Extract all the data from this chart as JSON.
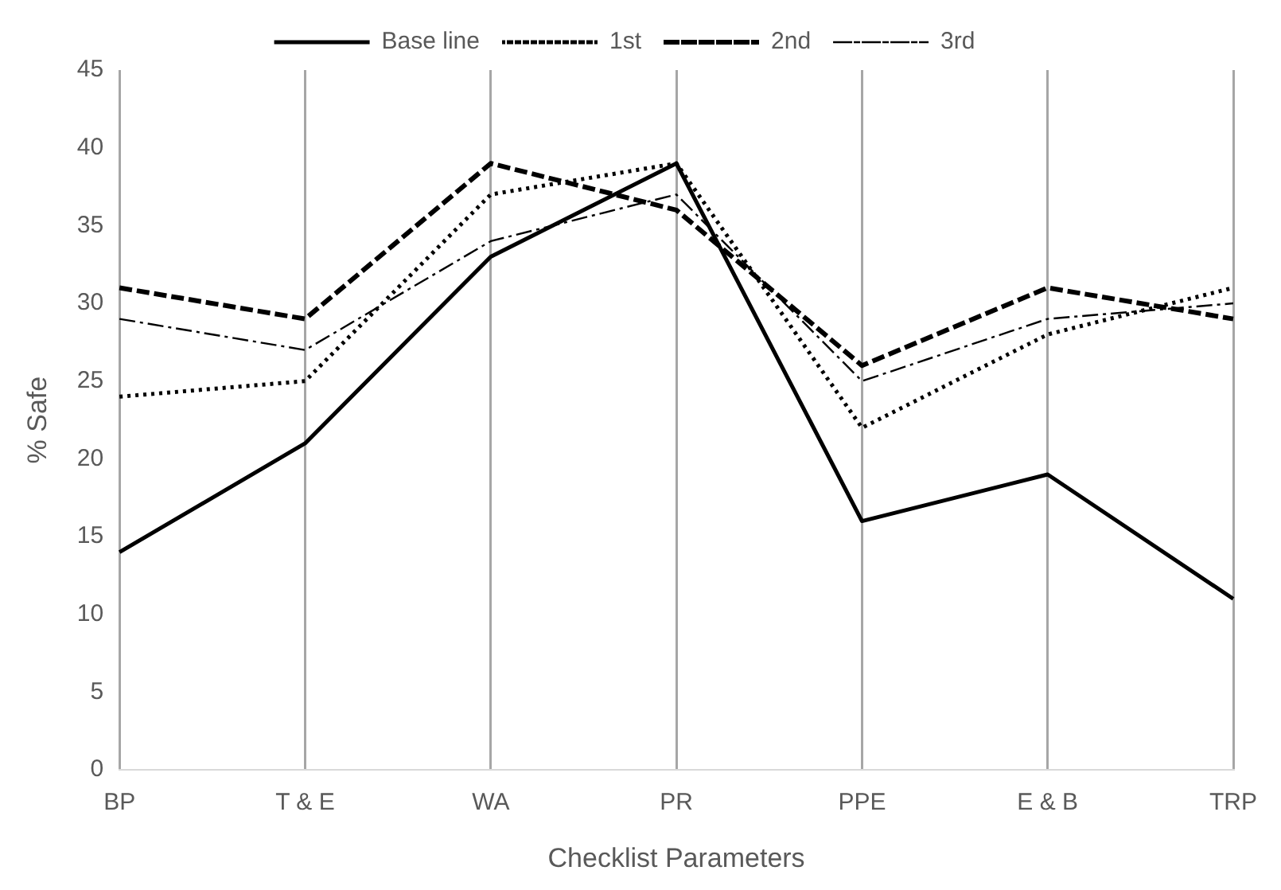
{
  "chart_data": {
    "type": "line",
    "xlabel": "Checklist Parameters",
    "ylabel": "% Safe",
    "categories": [
      "BP",
      "T & E",
      "WA",
      "PR",
      "PPE",
      "E & B",
      "TRP"
    ],
    "series": [
      {
        "name": "Base line",
        "color": "#000000",
        "line_style": "solid",
        "values": [
          14,
          21,
          33,
          39,
          16,
          19,
          11
        ]
      },
      {
        "name": "1st",
        "color": "#000000",
        "line_style": "dotted",
        "values": [
          24,
          25,
          37,
          39,
          22,
          28,
          31
        ]
      },
      {
        "name": "2nd",
        "color": "#000000",
        "line_style": "dashed",
        "values": [
          31,
          29,
          39,
          36,
          26,
          31,
          29
        ]
      },
      {
        "name": "3rd",
        "color": "#000000",
        "line_style": "dashdot",
        "values": [
          29,
          27,
          34,
          37,
          25,
          29,
          30
        ]
      }
    ],
    "ylim": [
      0,
      45
    ],
    "yticks": [
      0,
      5,
      10,
      15,
      20,
      25,
      30,
      35,
      40,
      45
    ],
    "grid": "x",
    "legend": "top",
    "marker": "none"
  }
}
